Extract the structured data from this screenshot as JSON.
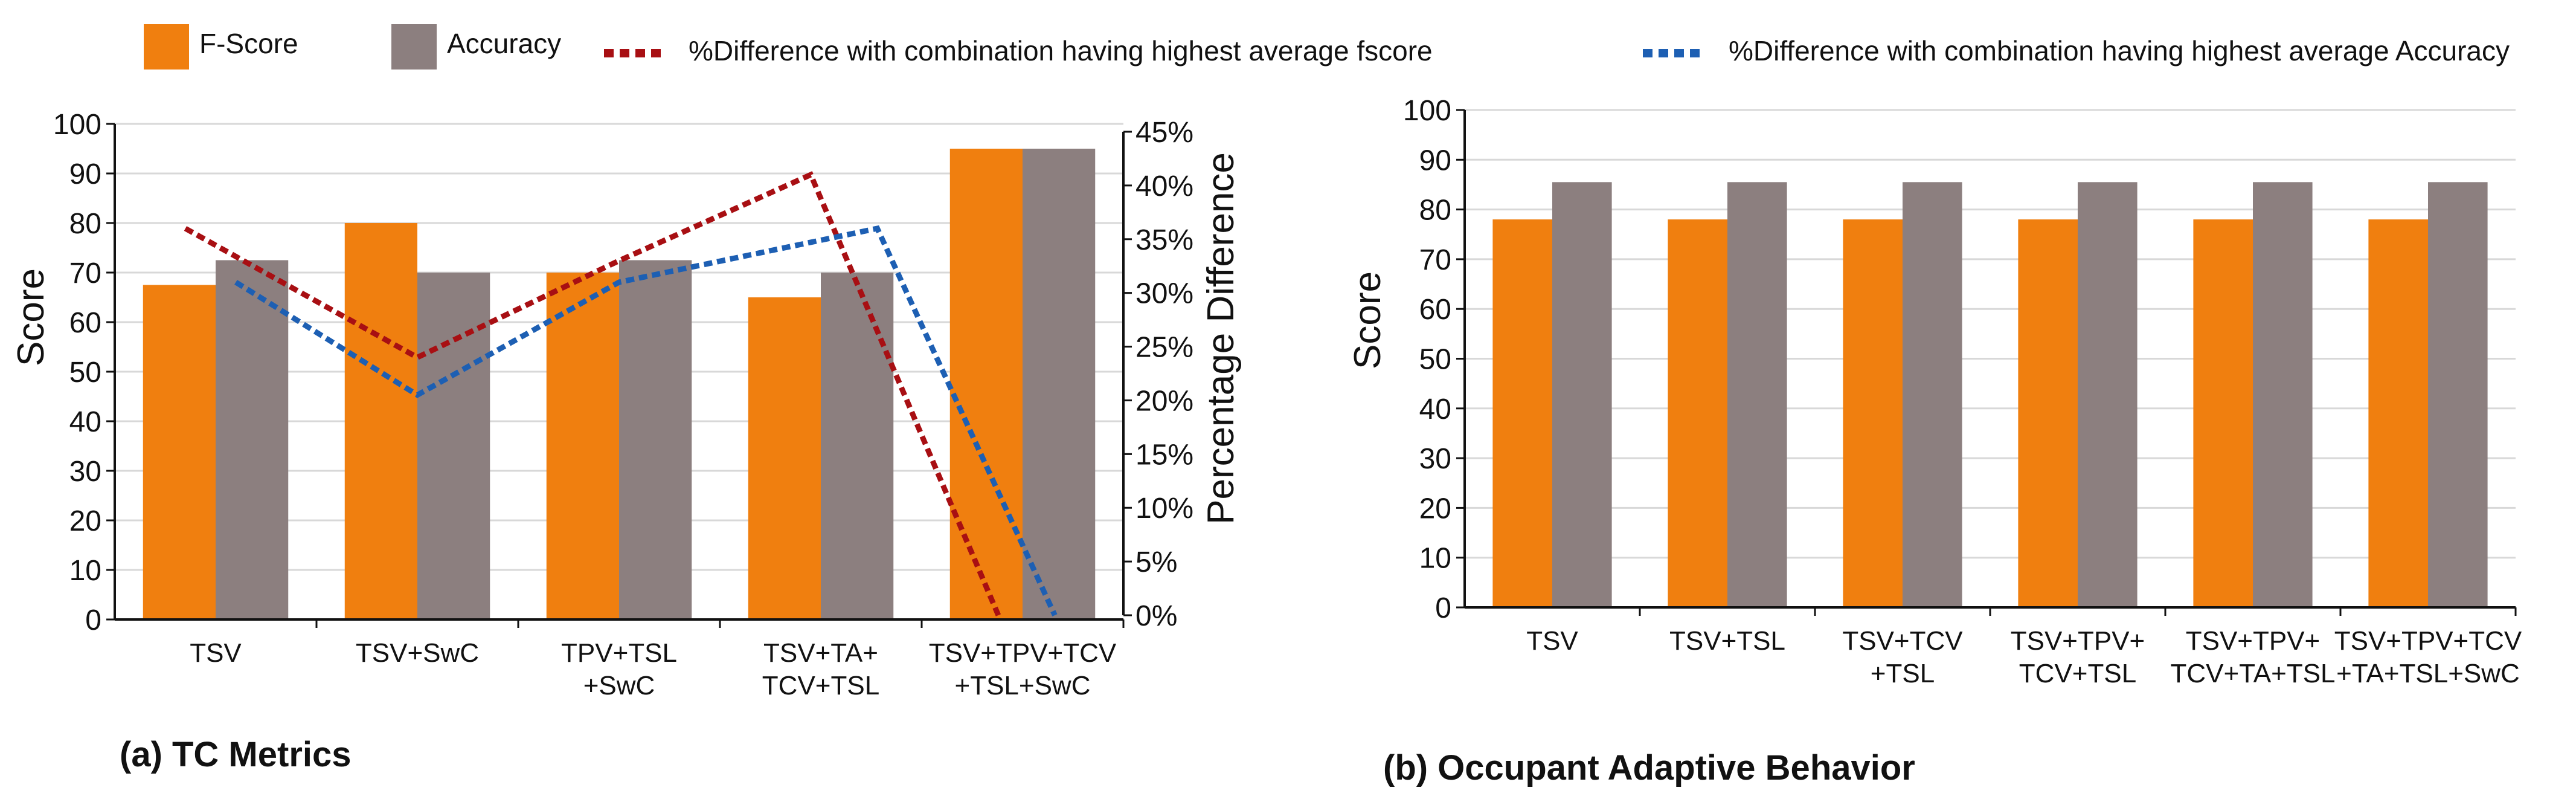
{
  "colors": {
    "fscore": "#f07f0f",
    "accuracy": "#8c7f7f",
    "diff_fscore": "#a80f13",
    "diff_accuracy": "#1d5fb3",
    "grid": "#d8d8d8",
    "axis": "#111111"
  },
  "legend": {
    "fscore": "F-Score",
    "accuracy": "Accuracy",
    "diff_fscore": "%Difference with combination having highest average fscore",
    "diff_accuracy": "%Difference with combination having highest average Accuracy"
  },
  "chart_data": [
    {
      "id": "a",
      "type": "bar",
      "caption": "(a) TC Metrics",
      "ylabel": "Score",
      "y2label": "Percentage Difference",
      "ylim": [
        0,
        100
      ],
      "yticks": [
        0,
        10,
        20,
        30,
        40,
        50,
        60,
        70,
        80,
        90,
        100
      ],
      "y2lim": [
        0,
        45
      ],
      "y2ticks": [
        "0%",
        "5%",
        "10%",
        "15%",
        "20%",
        "25%",
        "30%",
        "35%",
        "40%",
        "45%"
      ],
      "categories": [
        [
          "TSV"
        ],
        [
          "TSV+SwC"
        ],
        [
          "TPV+TSL",
          "+SwC"
        ],
        [
          "TSV+TA+",
          "TCV+TSL"
        ],
        [
          "TSV+TPV+TCV",
          "+TSL+SwC"
        ]
      ],
      "series": [
        {
          "name": "F-Score",
          "values": [
            67.5,
            80,
            70,
            65,
            95
          ]
        },
        {
          "name": "Accuracy",
          "values": [
            72.5,
            70,
            72.5,
            70,
            95
          ]
        }
      ],
      "lines": [
        {
          "name": "%Difference with combination having highest average fscore",
          "values": [
            36,
            24,
            33,
            41,
            0
          ]
        },
        {
          "name": "%Difference with combination having highest average Accuracy",
          "values": [
            31,
            20.5,
            31,
            36,
            0
          ]
        }
      ]
    },
    {
      "id": "b",
      "type": "bar",
      "caption": "(b) Occupant Adaptive Behavior",
      "ylabel": "Score",
      "ylim": [
        0,
        100
      ],
      "yticks": [
        0,
        10,
        20,
        30,
        40,
        50,
        60,
        70,
        80,
        90,
        100
      ],
      "categories": [
        [
          "TSV"
        ],
        [
          "TSV+TSL"
        ],
        [
          "TSV+TCV",
          "+TSL"
        ],
        [
          "TSV+TPV+",
          "TCV+TSL"
        ],
        [
          "TSV+TPV+",
          "TCV+TA+TSL"
        ],
        [
          "TSV+TPV+TCV",
          "+TA+TSL+SwC"
        ]
      ],
      "series": [
        {
          "name": "F-Score",
          "values": [
            78,
            78,
            78,
            78,
            78,
            78
          ]
        },
        {
          "name": "Accuracy",
          "values": [
            85.5,
            85.5,
            85.5,
            85.5,
            85.5,
            85.5
          ]
        }
      ]
    }
  ]
}
